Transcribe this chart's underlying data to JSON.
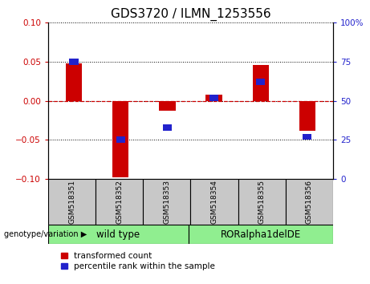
{
  "title": "GDS3720 / ILMN_1253556",
  "samples": [
    "GSM518351",
    "GSM518352",
    "GSM518353",
    "GSM518354",
    "GSM518355",
    "GSM518356"
  ],
  "red_values": [
    0.048,
    -0.098,
    -0.013,
    0.008,
    0.046,
    -0.038
  ],
  "blue_percentiles": [
    75,
    25,
    33,
    52,
    62,
    27
  ],
  "ylim_left": [
    -0.1,
    0.1
  ],
  "ylim_right": [
    0,
    100
  ],
  "yticks_left": [
    -0.1,
    -0.05,
    0,
    0.05,
    0.1
  ],
  "yticks_right": [
    0,
    25,
    50,
    75,
    100
  ],
  "group_label": "genotype/variation",
  "groups": [
    {
      "label": "wild type",
      "start": 0,
      "end": 2
    },
    {
      "label": "RORalpha1delDE",
      "start": 3,
      "end": 5
    }
  ],
  "bar_width": 0.35,
  "red_color": "#CC0000",
  "blue_color": "#2222CC",
  "legend_items": [
    "transformed count",
    "percentile rank within the sample"
  ],
  "grid_color": "black",
  "zero_line_color": "#CC0000",
  "sample_box_color": "#C8C8C8",
  "group_box_color": "#90EE90",
  "plot_bg": "white",
  "fig_bg": "white",
  "title_fontsize": 11,
  "tick_fontsize": 7.5,
  "sample_fontsize": 6.5,
  "group_fontsize": 8.5,
  "legend_fontsize": 7.5
}
